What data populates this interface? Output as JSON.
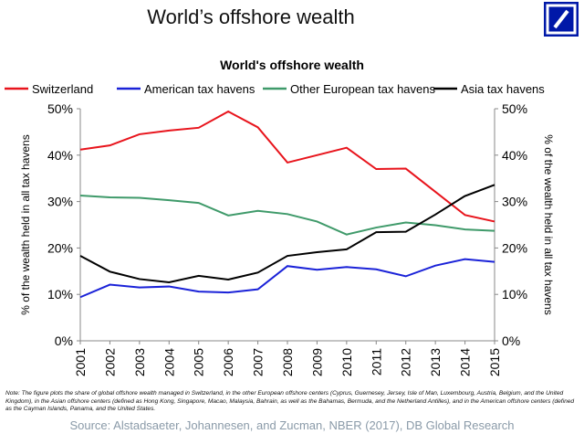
{
  "header": {
    "title": "World’s offshore wealth"
  },
  "logo": {
    "name": "deutsche-bank-logo",
    "color": "#0018a8"
  },
  "note": "Note: The figure plots the share of global offshore wealth managed in Switzerland, in the other European offshore centers (Cyprus, Guernesey, Jersey, Isle of Man, Luxembourg, Austria, Belgium, and the United Kingdom), in the Asian offshore centers (defined as Hong Kong, Singapore, Macao, Malaysia, Bahrain, as well as the Bahamas, Bermuda, and the Netherland Antilles), and in the American offshore centers (defined as the Cayman Islands, Panama, and the United States.",
  "source": "Source: Alstadsaeter, Johannesen, and Zucman, NBER (2017), DB Global Research",
  "chart_data": {
    "type": "line",
    "title": "World's offshore wealth",
    "ylabel": "% of the wealth held in all tax havens",
    "ylabel_right": "% of the wealth held in all tax havens",
    "ylim": [
      0,
      50
    ],
    "yticks": [
      "0%",
      "10%",
      "20%",
      "30%",
      "40%",
      "50%"
    ],
    "grid": false,
    "legend": "top",
    "x": [
      "2001",
      "2002",
      "2003",
      "2004",
      "2005",
      "2006",
      "2007",
      "2008",
      "2009",
      "2010",
      "2011",
      "2012",
      "2013",
      "2014",
      "2015"
    ],
    "series": [
      {
        "name": "Switzerland",
        "color": "#e8141c",
        "values": [
          41.2,
          42.1,
          44.5,
          45.3,
          45.9,
          49.4,
          46.0,
          38.4,
          40.0,
          41.6,
          37.0,
          37.1,
          32.1,
          27.1,
          25.7
        ]
      },
      {
        "name": "American tax havens",
        "color": "#1a22d8",
        "values": [
          9.4,
          12.1,
          11.5,
          11.7,
          10.6,
          10.4,
          11.1,
          16.1,
          15.3,
          15.9,
          15.4,
          13.9,
          16.2,
          17.6,
          17.0
        ]
      },
      {
        "name": "Other European tax havens",
        "color": "#3f9a6a",
        "values": [
          31.3,
          30.9,
          30.8,
          30.3,
          29.7,
          27.0,
          28.0,
          27.3,
          25.7,
          22.9,
          24.4,
          25.5,
          24.9,
          24.0,
          23.7
        ]
      },
      {
        "name": "Asia tax havens",
        "color": "#000000",
        "values": [
          18.3,
          14.9,
          13.3,
          12.6,
          14.0,
          13.2,
          14.7,
          18.3,
          19.1,
          19.7,
          23.4,
          23.5,
          27.2,
          31.2,
          33.6
        ]
      }
    ]
  }
}
